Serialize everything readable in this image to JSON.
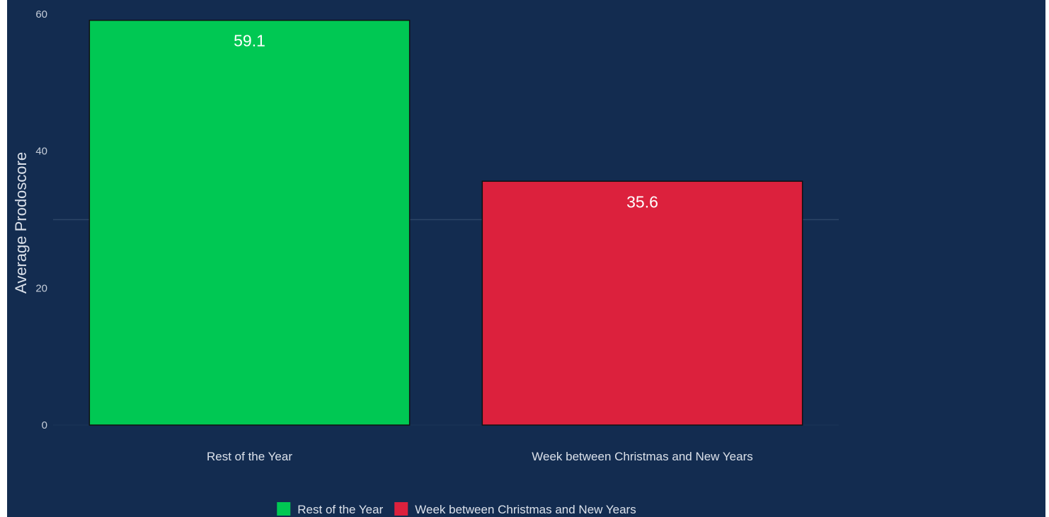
{
  "chart_data": {
    "type": "bar",
    "title": "",
    "xlabel": "",
    "ylabel": "Average Prodoscore",
    "ylim": [
      0,
      60
    ],
    "yticks": [
      0,
      20,
      40,
      60
    ],
    "grid": "horizontal minor only",
    "legend_position": "bottom",
    "categories": [
      "Rest of the Year",
      "Week between Christmas and New Years"
    ],
    "values": [
      59.1,
      35.6
    ],
    "data_labels": [
      "59.1",
      "35.6"
    ],
    "bar_colors": [
      "#00c853",
      "#dc213d"
    ],
    "legend": [
      {
        "label": "Rest of the Year",
        "color": "#00c853"
      },
      {
        "label": "Week between Christmas and New Years",
        "color": "#dc213d"
      }
    ]
  },
  "colors": {
    "background": "#132c50",
    "gridline": "#2c4566",
    "bar_outline": "#111111"
  }
}
